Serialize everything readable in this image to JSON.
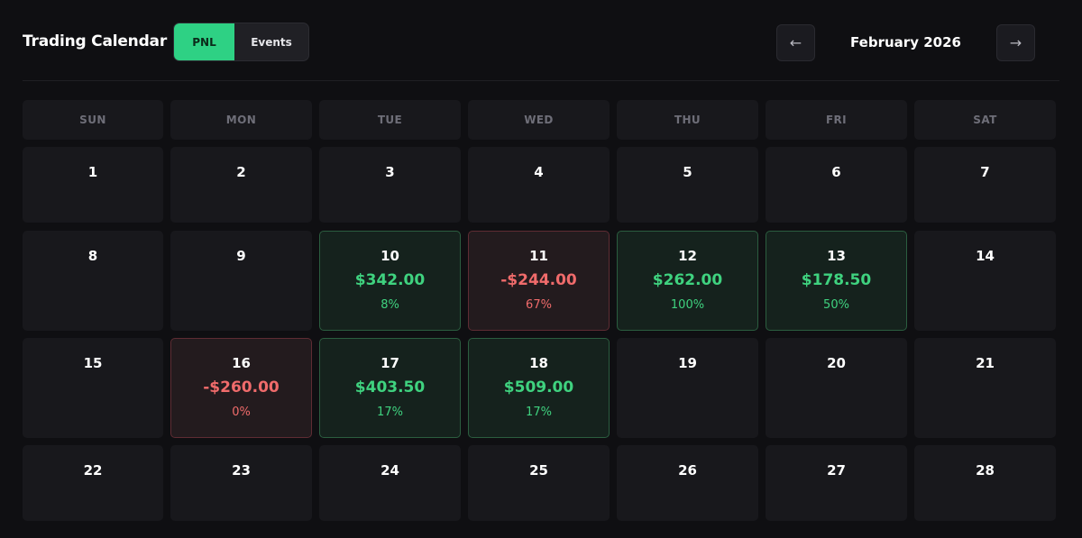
{
  "header": {
    "title": "Trading Calendar",
    "toggle": {
      "active": "PNL",
      "inactive": "Events"
    },
    "prev_arrow": "←",
    "next_arrow": "→",
    "month": "February 2026"
  },
  "weekdays": [
    "SUN",
    "MON",
    "TUE",
    "WED",
    "THU",
    "FRI",
    "SAT"
  ],
  "weeks": [
    [
      {
        "day": "1"
      },
      {
        "day": "2"
      },
      {
        "day": "3"
      },
      {
        "day": "4"
      },
      {
        "day": "5"
      },
      {
        "day": "6"
      },
      {
        "day": "7"
      }
    ],
    [
      {
        "day": "8"
      },
      {
        "day": "9"
      },
      {
        "day": "10",
        "pnl": "$342.00",
        "pct": "8%",
        "status": "win"
      },
      {
        "day": "11",
        "pnl": "-$244.00",
        "pct": "67%",
        "status": "loss"
      },
      {
        "day": "12",
        "pnl": "$262.00",
        "pct": "100%",
        "status": "win"
      },
      {
        "day": "13",
        "pnl": "$178.50",
        "pct": "50%",
        "status": "win"
      },
      {
        "day": "14"
      }
    ],
    [
      {
        "day": "15"
      },
      {
        "day": "16",
        "pnl": "-$260.00",
        "pct": "0%",
        "status": "loss"
      },
      {
        "day": "17",
        "pnl": "$403.50",
        "pct": "17%",
        "status": "win"
      },
      {
        "day": "18",
        "pnl": "$509.00",
        "pct": "17%",
        "status": "win"
      },
      {
        "day": "19"
      },
      {
        "day": "20"
      },
      {
        "day": "21"
      }
    ],
    [
      {
        "day": "22"
      },
      {
        "day": "23"
      },
      {
        "day": "24"
      },
      {
        "day": "25"
      },
      {
        "day": "26"
      },
      {
        "day": "27"
      },
      {
        "day": "28"
      }
    ]
  ],
  "colors": {
    "background": "#0f0f12",
    "accent": "#2ed184",
    "profit": "#3fd27f",
    "loss": "#f06b6b"
  }
}
